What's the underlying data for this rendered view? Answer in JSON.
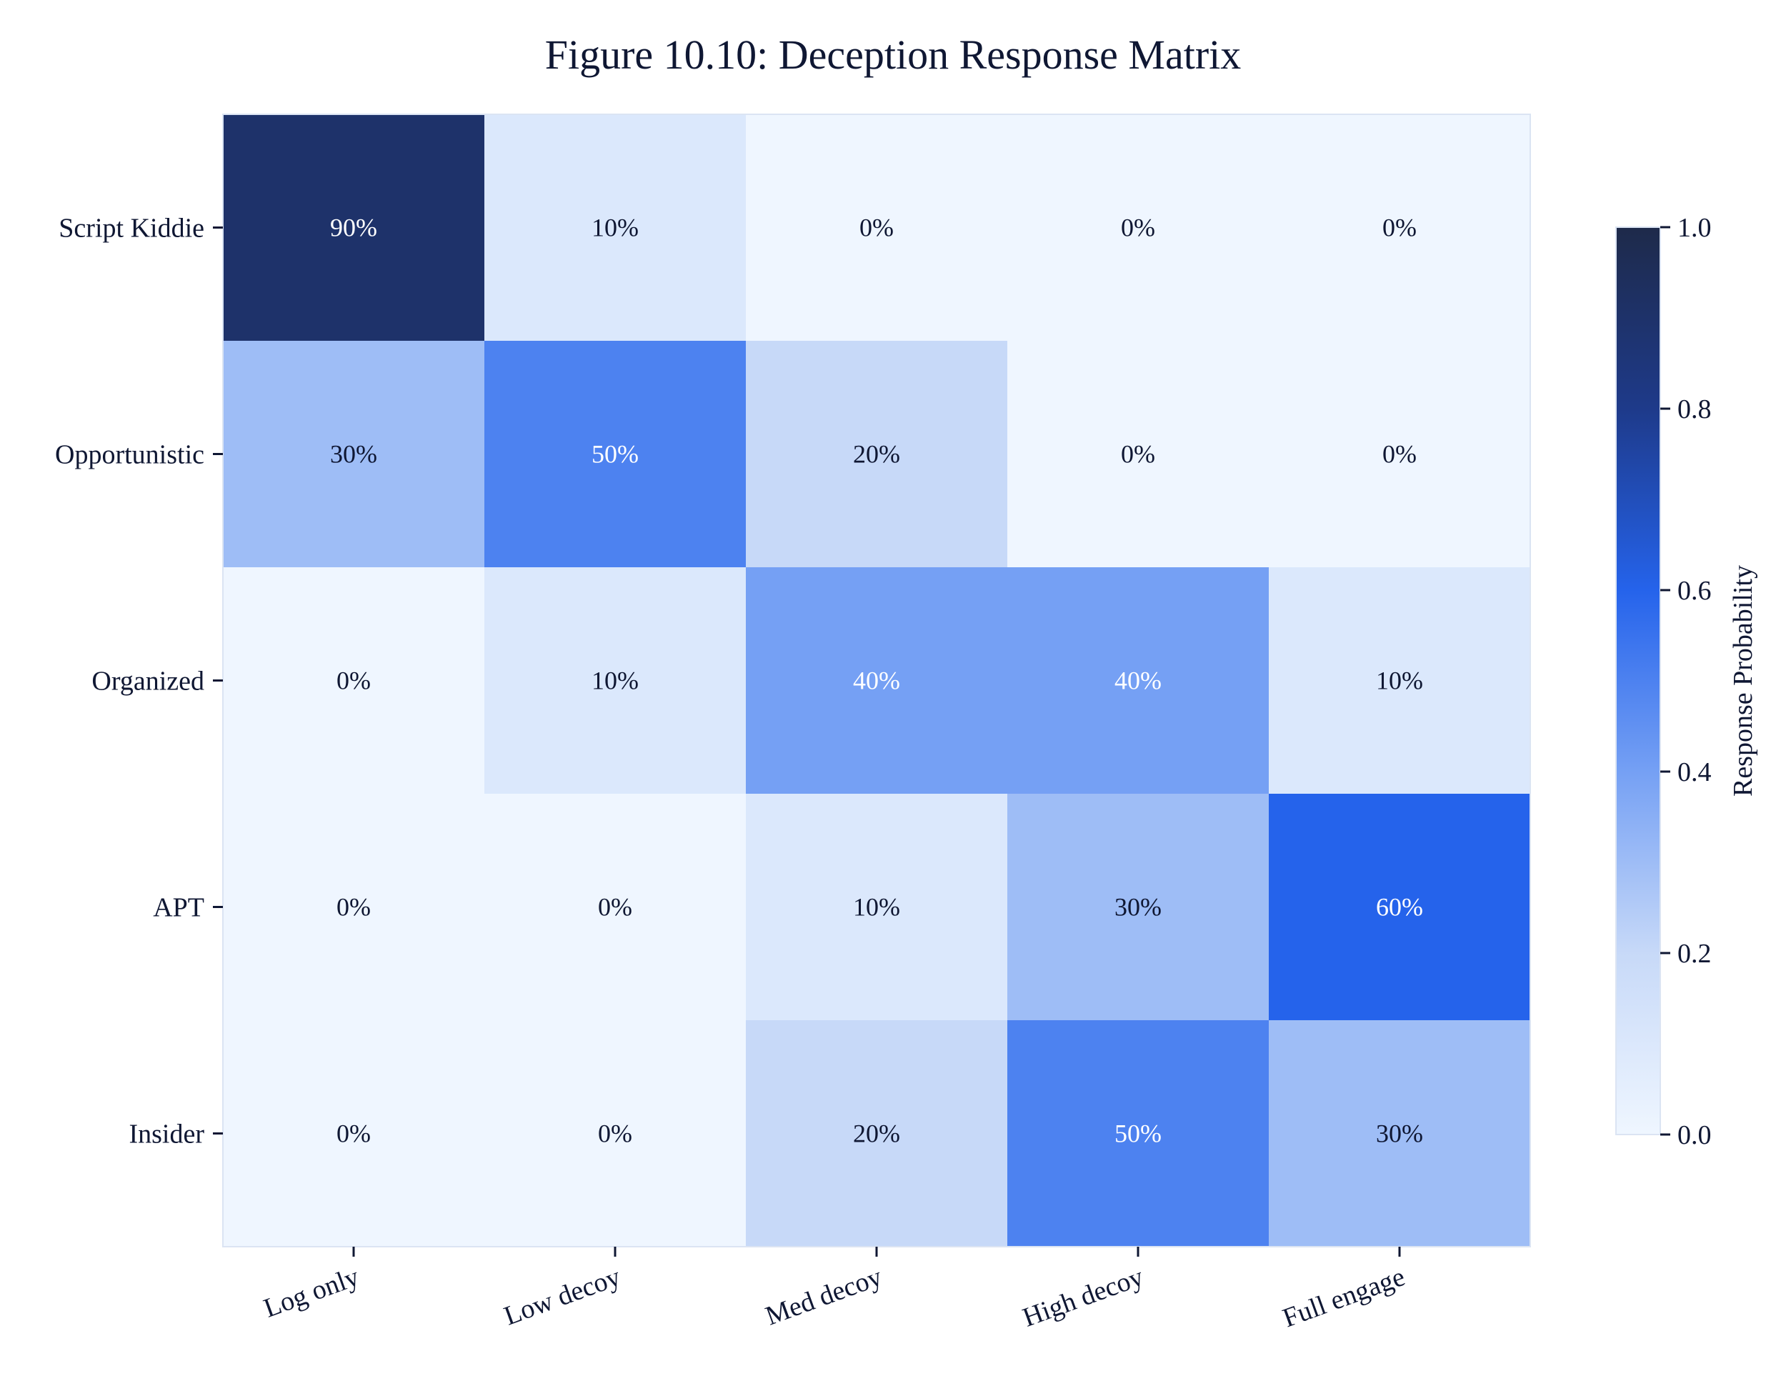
{
  "chart_data": {
    "type": "heatmap",
    "title": "Figure 10.10: Deception Response Matrix",
    "rows": [
      "Script Kiddie",
      "Opportunistic",
      "Organized",
      "APT",
      "Insider"
    ],
    "columns": [
      "Log only",
      "Low decoy",
      "Med decoy",
      "High decoy",
      "Full engage"
    ],
    "values": [
      [
        0.9,
        0.1,
        0.0,
        0.0,
        0.0
      ],
      [
        0.3,
        0.5,
        0.2,
        0.0,
        0.0
      ],
      [
        0.0,
        0.1,
        0.4,
        0.4,
        0.1
      ],
      [
        0.0,
        0.0,
        0.1,
        0.3,
        0.6
      ],
      [
        0.0,
        0.0,
        0.2,
        0.5,
        0.3
      ]
    ],
    "cell_labels": [
      [
        "90%",
        "10%",
        "0%",
        "0%",
        "0%"
      ],
      [
        "30%",
        "50%",
        "20%",
        "0%",
        "0%"
      ],
      [
        "0%",
        "10%",
        "40%",
        "40%",
        "10%"
      ],
      [
        "0%",
        "0%",
        "10%",
        "30%",
        "60%"
      ],
      [
        "0%",
        "0%",
        "20%",
        "50%",
        "30%"
      ]
    ],
    "colorbar": {
      "label": "Response Probability",
      "range": [
        0.0,
        1.0
      ],
      "ticks": [
        "0.0",
        "0.2",
        "0.4",
        "0.6",
        "0.8",
        "1.0"
      ],
      "colors": [
        "#eff6ff",
        "#c7d9f8",
        "#75a0f4",
        "#2563eb",
        "#1e3a8a",
        "#1e2a4a"
      ]
    },
    "grid": false
  }
}
